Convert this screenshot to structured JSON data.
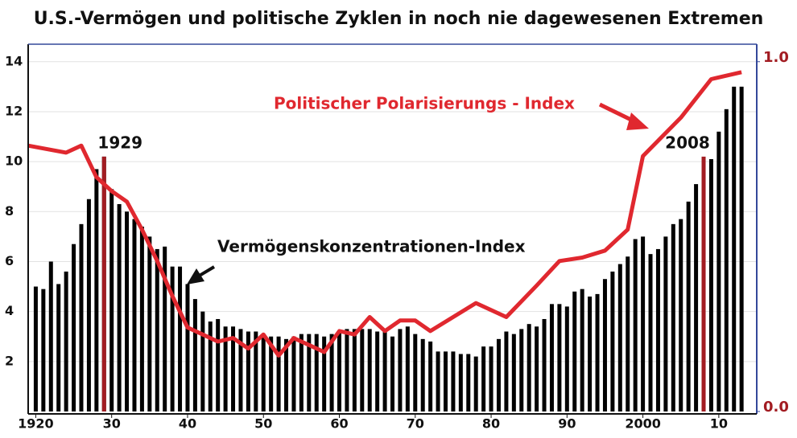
{
  "chart_data": {
    "type": "bar",
    "title": "U.S.-Vermögen und politische Zyklen in noch nie dagewesenen Extremen",
    "annotations": [
      "Politischer Polarisierungs - Index",
      "Vermögenskonzentrationen-Index"
    ],
    "xlim": [
      1919,
      2015
    ],
    "xticks": [
      {
        "value": 1920,
        "label": "1920"
      },
      {
        "value": 1930,
        "label": "30"
      },
      {
        "value": 1940,
        "label": "40"
      },
      {
        "value": 1950,
        "label": "50"
      },
      {
        "value": 1960,
        "label": "60"
      },
      {
        "value": 1970,
        "label": "70"
      },
      {
        "value": 1980,
        "label": "80"
      },
      {
        "value": 1990,
        "label": "90"
      },
      {
        "value": 2000,
        "label": "2000"
      },
      {
        "value": 2010,
        "label": "10"
      }
    ],
    "ylim": [
      0,
      14.7
    ],
    "yticks": [
      2,
      4,
      6,
      8,
      10,
      12,
      14
    ],
    "y2lim": [
      0,
      1.05
    ],
    "y2ticks": [
      {
        "value": 0,
        "label": "0.0"
      },
      {
        "value": 1,
        "label": "1.0"
      }
    ],
    "grid": true,
    "series": [
      {
        "name": "Vermögenskonzentrationen-Index",
        "type": "bar",
        "color": "#000000",
        "x": [
          1920,
          1921,
          1922,
          1923,
          1924,
          1925,
          1926,
          1927,
          1928,
          1929,
          1930,
          1931,
          1932,
          1933,
          1934,
          1935,
          1936,
          1937,
          1938,
          1939,
          1940,
          1941,
          1942,
          1943,
          1944,
          1945,
          1946,
          1947,
          1948,
          1949,
          1950,
          1951,
          1952,
          1953,
          1954,
          1955,
          1956,
          1957,
          1958,
          1959,
          1960,
          1961,
          1962,
          1963,
          1964,
          1965,
          1966,
          1967,
          1968,
          1969,
          1970,
          1971,
          1972,
          1973,
          1974,
          1975,
          1976,
          1977,
          1978,
          1979,
          1980,
          1981,
          1982,
          1983,
          1984,
          1985,
          1986,
          1987,
          1988,
          1989,
          1990,
          1991,
          1992,
          1993,
          1994,
          1995,
          1996,
          1997,
          1998,
          1999,
          2000,
          2001,
          2002,
          2003,
          2004,
          2005,
          2006,
          2007,
          2008,
          2009,
          2010,
          2011,
          2012,
          2013
        ],
        "values": [
          5.0,
          4.9,
          6.0,
          5.1,
          5.6,
          6.7,
          7.5,
          8.5,
          9.7,
          10.2,
          8.9,
          8.3,
          8.0,
          7.7,
          7.4,
          7.0,
          6.5,
          6.6,
          5.8,
          5.8,
          5.1,
          4.5,
          4.0,
          3.6,
          3.7,
          3.4,
          3.4,
          3.3,
          3.2,
          3.2,
          3.1,
          3.0,
          3.0,
          2.9,
          3.0,
          3.1,
          3.1,
          3.1,
          3.0,
          3.1,
          3.2,
          3.3,
          3.3,
          3.3,
          3.3,
          3.2,
          3.3,
          3.0,
          3.3,
          3.4,
          3.1,
          2.9,
          2.8,
          2.4,
          2.4,
          2.4,
          2.3,
          2.3,
          2.2,
          2.6,
          2.6,
          2.9,
          3.2,
          3.1,
          3.3,
          3.5,
          3.4,
          3.7,
          4.3,
          4.3,
          4.2,
          4.8,
          4.9,
          4.6,
          4.7,
          5.3,
          5.6,
          5.9,
          6.2,
          6.9,
          7.0,
          6.3,
          6.5,
          7.0,
          7.5,
          7.7,
          8.4,
          9.1,
          9.6,
          10.1,
          11.2,
          12.1,
          13.0,
          13.0
        ]
      },
      {
        "name": "Politischer Polarisierungs - Index",
        "type": "line",
        "axis": "y2",
        "color": "#e0282f",
        "x": [
          1919,
          1924,
          1926,
          1928,
          1930,
          1932,
          1934,
          1936,
          1938,
          1940,
          1942,
          1944,
          1946,
          1948,
          1950,
          1952,
          1954,
          1956,
          1958,
          1960,
          1962,
          1964,
          1966,
          1968,
          1970,
          1972,
          1975,
          1978,
          1982,
          1986,
          1989,
          1992,
          1995,
          1998,
          2000,
          2005,
          2009,
          2013
        ],
        "values": [
          0.76,
          0.74,
          0.76,
          0.67,
          0.63,
          0.6,
          0.52,
          0.43,
          0.33,
          0.24,
          0.22,
          0.2,
          0.21,
          0.18,
          0.22,
          0.16,
          0.21,
          0.19,
          0.17,
          0.23,
          0.22,
          0.27,
          0.23,
          0.26,
          0.26,
          0.23,
          0.27,
          0.31,
          0.27,
          0.36,
          0.43,
          0.44,
          0.46,
          0.52,
          0.73,
          0.84,
          0.95,
          0.97
        ]
      }
    ],
    "markers": [
      {
        "x": 1929,
        "top": 10.2,
        "label": "1929",
        "color": "#a21c22"
      },
      {
        "x": 2008,
        "top": 10.2,
        "label": "2008",
        "color": "#a21c22"
      }
    ]
  }
}
